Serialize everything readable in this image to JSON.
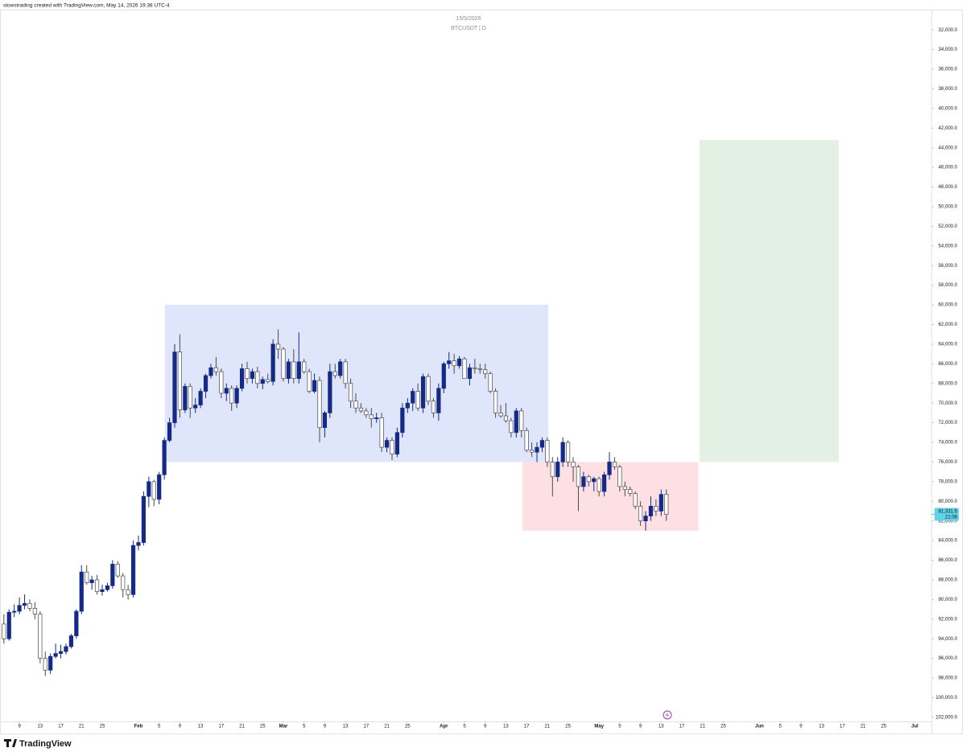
{
  "header": {
    "credit": "stowstrading created with TradingView.com, May 14, 2026 19:38 UTC-4"
  },
  "footer": {
    "logo": "TradingView"
  },
  "chart_data": {
    "type": "candlestick",
    "title": "15/5/2026",
    "subtitle": "BTCUSDT | D",
    "inverted": true,
    "up_color": "#ffffff",
    "down_color": "#142a86",
    "wick_color": "#4a4a4a",
    "x": [
      6,
      7,
      8,
      9,
      10,
      11,
      12,
      13,
      14,
      15,
      16,
      17,
      18,
      19,
      20,
      21,
      22,
      23,
      24,
      25,
      26,
      27,
      28,
      29,
      30,
      31,
      32,
      33,
      34,
      35,
      36,
      37,
      38,
      39,
      40,
      41,
      42,
      43,
      44,
      45,
      46,
      47,
      48,
      49,
      50,
      51,
      52,
      53,
      54,
      55,
      56,
      57,
      58,
      59,
      60,
      61,
      62,
      63,
      64,
      65,
      66,
      67,
      68,
      69,
      70,
      71,
      72,
      73,
      74,
      75,
      76,
      77,
      78,
      79,
      80,
      81,
      82,
      83,
      84,
      85,
      86,
      87,
      88,
      89,
      90,
      91,
      92,
      93,
      94,
      95,
      96,
      97,
      98,
      99,
      100,
      101,
      102,
      103,
      104,
      105,
      106,
      107,
      108,
      109,
      110,
      111,
      112,
      113,
      114,
      115,
      116,
      117,
      118,
      119,
      120,
      121,
      122,
      123,
      124,
      125,
      126,
      127,
      128,
      129,
      130,
      131,
      132,
      133,
      134
    ],
    "open": [
      92500,
      94000,
      91300,
      91200,
      90600,
      90400,
      90900,
      91500,
      96000,
      97200,
      95800,
      95500,
      95300,
      94800,
      93700,
      91200,
      87200,
      88300,
      88000,
      89200,
      89000,
      88600,
      86400,
      87600,
      89000,
      89500,
      84500,
      84200,
      79500,
      78000,
      79800,
      77300,
      73800,
      72000,
      64800,
      70700,
      68300,
      70500,
      70200,
      68800,
      67200,
      66400,
      66800,
      69000,
      68500,
      70000,
      68500,
      66500,
      67500,
      66800,
      68000,
      67600,
      67800,
      64000,
      64500,
      67500,
      65800,
      67500,
      65800,
      66800,
      68800,
      67700,
      72500,
      71000,
      66800,
      67200,
      65800,
      68000,
      69800,
      70500,
      70800,
      71200,
      71600,
      71500,
      74500,
      73800,
      75200,
      73000,
      70500,
      70000,
      68800,
      70500,
      67300,
      69800,
      71000,
      68500,
      66000,
      65700,
      66200,
      65500,
      67500,
      66400,
      66500,
      66600,
      67000,
      68800,
      71000,
      71300,
      71800,
      73000,
      70800,
      72800,
      74800,
      75000,
      74500,
      73800,
      76000,
      77500,
      76000,
      74000,
      76000,
      76500,
      78500,
      77500,
      78000,
      77700,
      79000,
      77300,
      76000,
      76500,
      78500,
      78800,
      79200,
      80500,
      82000,
      81500,
      80500,
      81000,
      79300
    ],
    "high": [
      94500,
      94200,
      91800,
      91500,
      91000,
      91200,
      92000,
      96500,
      97800,
      97600,
      96000,
      96000,
      95600,
      95000,
      94000,
      91500,
      88500,
      89000,
      89500,
      89600,
      89200,
      88900,
      87800,
      89800,
      90000,
      89800,
      85000,
      84500,
      80600,
      80500,
      80300,
      77800,
      74000,
      72500,
      71500,
      71000,
      71500,
      71000,
      70500,
      69500,
      67500,
      67200,
      69500,
      69800,
      70800,
      70500,
      68800,
      68000,
      68000,
      68500,
      68600,
      68000,
      68200,
      65500,
      67800,
      68000,
      68000,
      68000,
      67000,
      69000,
      69000,
      74000,
      73500,
      71500,
      67500,
      67500,
      68500,
      70500,
      71000,
      71000,
      71500,
      72500,
      72000,
      75000,
      75000,
      75800,
      75500,
      73500,
      71000,
      70800,
      70800,
      71000,
      70200,
      71500,
      71800,
      69000,
      66500,
      67000,
      66500,
      67500,
      68200,
      67000,
      67000,
      67500,
      69000,
      71500,
      71500,
      72000,
      73500,
      73500,
      73500,
      75000,
      75500,
      76000,
      75000,
      76500,
      79500,
      78000,
      76500,
      76500,
      78000,
      81000,
      79000,
      78500,
      79000,
      79500,
      79500,
      77800,
      76800,
      79000,
      79500,
      79500,
      80800,
      82500,
      83000,
      82000,
      81500,
      81500,
      82000
    ],
    "low": [
      91500,
      91000,
      90500,
      89800,
      89500,
      90000,
      90300,
      91200,
      95300,
      95500,
      94500,
      94600,
      94500,
      93500,
      91000,
      86500,
      86500,
      87600,
      87500,
      88500,
      88300,
      86000,
      86100,
      87300,
      88500,
      84000,
      83500,
      79000,
      77500,
      77800,
      77000,
      73500,
      71500,
      64000,
      63000,
      68000,
      68000,
      69500,
      68500,
      67000,
      66000,
      65300,
      66500,
      68000,
      68200,
      68200,
      66000,
      65800,
      66500,
      66300,
      67300,
      67000,
      63500,
      62500,
      64300,
      65500,
      64500,
      62800,
      65500,
      66500,
      67000,
      67300,
      70800,
      66000,
      66000,
      65500,
      65500,
      67500,
      69000,
      70000,
      70500,
      70500,
      71000,
      71000,
      73500,
      73500,
      72500,
      70000,
      69500,
      68500,
      68000,
      67000,
      67000,
      69500,
      68000,
      65800,
      64800,
      65000,
      65200,
      65300,
      66000,
      65500,
      66000,
      66000,
      66800,
      68500,
      70200,
      70000,
      71500,
      70500,
      70500,
      72500,
      74000,
      74000,
      73500,
      73500,
      75500,
      75500,
      73500,
      73800,
      75500,
      76300,
      77000,
      77300,
      77500,
      77500,
      77000,
      75000,
      75500,
      76300,
      78000,
      78500,
      79000,
      80000,
      81000,
      79500,
      79800,
      78800,
      78800
    ],
    "close": [
      94000,
      91300,
      91200,
      90600,
      90400,
      90900,
      91500,
      96000,
      97200,
      95800,
      95500,
      95300,
      94800,
      93700,
      91200,
      87200,
      88300,
      88000,
      89200,
      89000,
      88600,
      86400,
      87600,
      89000,
      89500,
      84500,
      84200,
      79500,
      78000,
      79800,
      77300,
      73800,
      72000,
      64800,
      70700,
      68300,
      70500,
      70200,
      68800,
      67200,
      66400,
      66800,
      69000,
      68500,
      70000,
      68500,
      66500,
      67500,
      66800,
      68000,
      67600,
      67800,
      64000,
      64500,
      67500,
      65800,
      67500,
      65800,
      66800,
      68800,
      67700,
      72500,
      71000,
      66800,
      67200,
      65800,
      68000,
      69800,
      70500,
      70800,
      71200,
      71600,
      71500,
      74500,
      73800,
      75200,
      73000,
      70500,
      70000,
      68800,
      70500,
      67300,
      69800,
      71000,
      68500,
      66000,
      65700,
      66200,
      65500,
      67500,
      66400,
      66500,
      66600,
      67000,
      68800,
      71000,
      71300,
      71800,
      73000,
      70800,
      72800,
      74800,
      75000,
      74500,
      73800,
      76000,
      77500,
      76000,
      74000,
      76000,
      76500,
      78500,
      77500,
      78000,
      77700,
      79000,
      77300,
      76000,
      76500,
      78500,
      78800,
      79200,
      80500,
      82000,
      81500,
      80500,
      81000,
      79300,
      81331.5
    ],
    "last_price": 81331.5,
    "last_price_label": "81,331.5",
    "countdown": "21:08",
    "zones": [
      {
        "x": [
          37.1,
          111.2
        ],
        "y": [
          60000,
          76000
        ],
        "color": "#dfe6fb"
      },
      {
        "x": [
          106.2,
          140.2
        ],
        "y": [
          76000,
          83000
        ],
        "color": "#fde0e3"
      },
      {
        "x": [
          140.4,
          167.3
        ],
        "y": [
          43200,
          76000
        ],
        "color": "#e3f1e5"
      }
    ],
    "xlim": [
      5.25,
      184.9
    ],
    "xticks": [
      9,
      13,
      17,
      21,
      25,
      {
        "value": 32,
        "label": "Feb"
      },
      {
        "value": 36,
        "label": "5"
      },
      {
        "value": 40,
        "label": "9"
      },
      {
        "value": 44,
        "label": "13"
      },
      {
        "value": 48,
        "label": "17"
      },
      {
        "value": 52,
        "label": "21"
      },
      {
        "value": 56,
        "label": "25"
      },
      {
        "value": 60,
        "label": "Mar"
      },
      {
        "value": 64,
        "label": "5"
      },
      {
        "value": 68,
        "label": "9"
      },
      {
        "value": 72,
        "label": "13"
      },
      {
        "value": 76,
        "label": "17"
      },
      {
        "value": 80,
        "label": "21"
      },
      {
        "value": 84,
        "label": "25"
      },
      {
        "value": 91,
        "label": "Apr"
      },
      {
        "value": 95,
        "label": "5"
      },
      {
        "value": 99,
        "label": "9"
      },
      {
        "value": 103,
        "label": "13"
      },
      {
        "value": 107,
        "label": "17"
      },
      {
        "value": 111,
        "label": "21"
      },
      {
        "value": 115,
        "label": "25"
      },
      {
        "value": 121,
        "label": "May"
      },
      {
        "value": 125,
        "label": "5"
      },
      {
        "value": 129,
        "label": "9"
      },
      {
        "value": 133,
        "label": "13"
      },
      {
        "value": 137,
        "label": "17"
      },
      {
        "value": 141,
        "label": "21"
      },
      {
        "value": 145,
        "label": "25"
      },
      {
        "value": 152,
        "label": "Jun"
      },
      {
        "value": 156,
        "label": "5"
      },
      {
        "value": 160,
        "label": "9"
      },
      {
        "value": 164,
        "label": "13"
      },
      {
        "value": 168,
        "label": "17"
      },
      {
        "value": 172,
        "label": "21"
      },
      {
        "value": 176,
        "label": "25"
      },
      {
        "value": 182,
        "label": "Jul"
      }
    ],
    "ylim": [
      30100,
      102500
    ],
    "yticks": [
      {
        "value": 32000,
        "label": "32,000.0"
      },
      {
        "value": 34000,
        "label": "34,000.0"
      },
      {
        "value": 36000,
        "label": "36,000.0"
      },
      {
        "value": 38000,
        "label": "38,000.0"
      },
      {
        "value": 40000,
        "label": "40,000.0"
      },
      {
        "value": 42000,
        "label": "42,000.0"
      },
      {
        "value": 44000,
        "label": "44,000.0"
      },
      {
        "value": 46000,
        "label": "46,000.0"
      },
      {
        "value": 48000,
        "label": "48,000.0"
      },
      {
        "value": 50000,
        "label": "50,000.0"
      },
      {
        "value": 52000,
        "label": "52,000.0"
      },
      {
        "value": 54000,
        "label": "54,000.0"
      },
      {
        "value": 56000,
        "label": "56,000.0"
      },
      {
        "value": 58000,
        "label": "58,000.0"
      },
      {
        "value": 60000,
        "label": "60,000.0"
      },
      {
        "value": 62000,
        "label": "62,000.0"
      },
      {
        "value": 64000,
        "label": "64,000.0"
      },
      {
        "value": 66000,
        "label": "66,000.0"
      },
      {
        "value": 68000,
        "label": "68,000.0"
      },
      {
        "value": 70000,
        "label": "70,000.0"
      },
      {
        "value": 72000,
        "label": "72,000.0"
      },
      {
        "value": 74000,
        "label": "74,000.0"
      },
      {
        "value": 76000,
        "label": "76,000.0"
      },
      {
        "value": 78000,
        "label": "78,000.0"
      },
      {
        "value": 80000,
        "label": "80,000.0"
      },
      {
        "value": 82000,
        "label": "82,000.0"
      },
      {
        "value": 84000,
        "label": "84,000.0"
      },
      {
        "value": 86000,
        "label": "86,000.0"
      },
      {
        "value": 88000,
        "label": "88,000.0"
      },
      {
        "value": 90000,
        "label": "90,000.0"
      },
      {
        "value": 92000,
        "label": "92,000.0"
      },
      {
        "value": 94000,
        "label": "94,000.0"
      },
      {
        "value": 96000,
        "label": "96,000.0"
      },
      {
        "value": 98000,
        "label": "98,000.0"
      },
      {
        "value": 100000,
        "label": "100,000.0"
      },
      {
        "value": 102000,
        "label": "102,000.0"
      }
    ],
    "grid": false
  }
}
